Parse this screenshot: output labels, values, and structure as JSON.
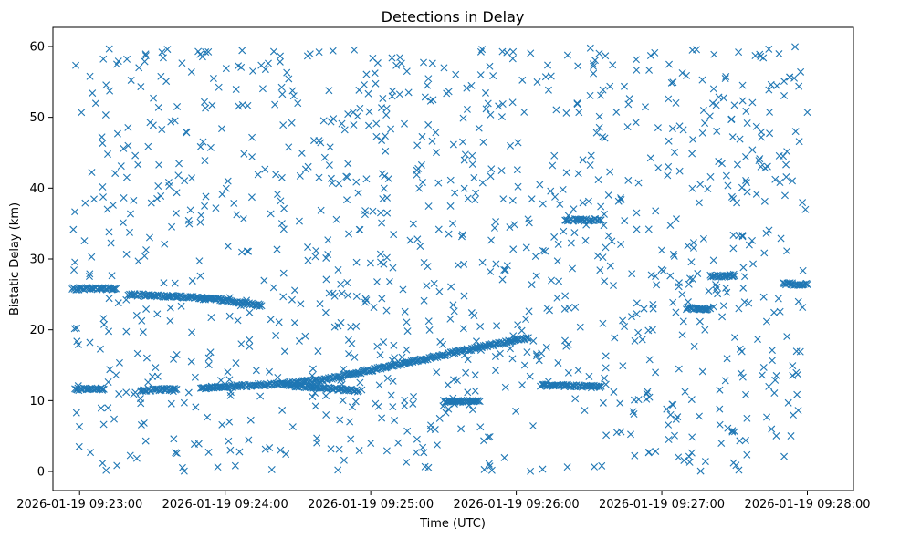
{
  "chart_data": {
    "type": "scatter",
    "title": "Detections in Delay",
    "xlabel": "Time (UTC)",
    "ylabel": "Bistatic Delay (km)",
    "marker": "x",
    "color": "#1f77b4",
    "grid": false,
    "legend": "none",
    "x_type": "time",
    "xlim": [
      "2026-01-19 09:22:49",
      "2026-01-19 09:28:19"
    ],
    "ylim": [
      -2.7,
      62.7
    ],
    "x_ticks": [
      "2026-01-19 09:23:00",
      "2026-01-19 09:24:00",
      "2026-01-19 09:25:00",
      "2026-01-19 09:26:00",
      "2026-01-19 09:27:00",
      "2026-01-19 09:28:00"
    ],
    "y_ticks": [
      "0",
      "10",
      "20",
      "30",
      "40",
      "50",
      "60"
    ],
    "tracks": [
      {
        "x": [
          "2026-01-19 09:23:20",
          "2026-01-19 09:23:40",
          "2026-01-19 09:24:00",
          "2026-01-19 09:24:15"
        ],
        "y": [
          25.0,
          24.7,
          24.2,
          23.4
        ]
      },
      {
        "x": [
          "2026-01-19 09:23:50",
          "2026-01-19 09:24:20",
          "2026-01-19 09:24:40",
          "2026-01-19 09:25:00",
          "2026-01-19 09:25:20",
          "2026-01-19 09:25:40",
          "2026-01-19 09:26:05"
        ],
        "y": [
          11.8,
          12.3,
          12.9,
          14.3,
          15.7,
          17.2,
          18.9
        ]
      },
      {
        "x": [
          "2026-01-19 09:22:57",
          "2026-01-19 09:23:05",
          "2026-01-19 09:23:15"
        ],
        "y": [
          25.8,
          25.8,
          25.8
        ]
      },
      {
        "x": [
          "2026-01-19 09:22:58",
          "2026-01-19 09:23:10"
        ],
        "y": [
          11.6,
          11.6
        ]
      },
      {
        "x": [
          "2026-01-19 09:23:25",
          "2026-01-19 09:23:40"
        ],
        "y": [
          11.5,
          11.6
        ]
      },
      {
        "x": [
          "2026-01-19 09:24:25",
          "2026-01-19 09:24:55"
        ],
        "y": [
          12.2,
          11.4
        ]
      },
      {
        "x": [
          "2026-01-19 09:25:30",
          "2026-01-19 09:25:45"
        ],
        "y": [
          9.9,
          9.9
        ]
      },
      {
        "x": [
          "2026-01-19 09:26:10",
          "2026-01-19 09:26:35"
        ],
        "y": [
          12.2,
          12.0
        ]
      },
      {
        "x": [
          "2026-01-19 09:26:20",
          "2026-01-19 09:26:35"
        ],
        "y": [
          35.5,
          35.5
        ]
      },
      {
        "x": [
          "2026-01-19 09:27:10",
          "2026-01-19 09:27:20"
        ],
        "y": [
          23.0,
          23.0
        ]
      },
      {
        "x": [
          "2026-01-19 09:27:20",
          "2026-01-19 09:27:30"
        ],
        "y": [
          27.6,
          27.6
        ]
      },
      {
        "x": [
          "2026-01-19 09:27:50",
          "2026-01-19 09:28:00"
        ],
        "y": [
          26.5,
          26.4
        ]
      }
    ],
    "clutter_count": 1100,
    "clutter_range_y": [
      0,
      60
    ]
  }
}
